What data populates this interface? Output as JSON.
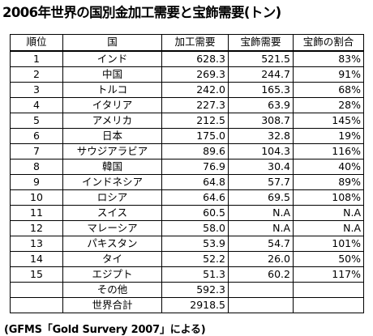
{
  "title": "2006年世界の国別金加工需要と宝飾需要(トン)",
  "columns": [
    "順位",
    "国",
    "加工需要",
    "宝飾需要",
    "宝飾の割合"
  ],
  "rows": [
    {
      "rank": "1",
      "country": "インド",
      "fab": "628.3",
      "jewelry": "521.5",
      "share": "83%"
    },
    {
      "rank": "2",
      "country": "中国",
      "fab": "269.3",
      "jewelry": "244.7",
      "share": "91%"
    },
    {
      "rank": "3",
      "country": "トルコ",
      "fab": "242.0",
      "jewelry": "165.3",
      "share": "68%"
    },
    {
      "rank": "4",
      "country": "イタリア",
      "fab": "227.3",
      "jewelry": "63.9",
      "share": "28%"
    },
    {
      "rank": "5",
      "country": "アメリカ",
      "fab": "212.5",
      "jewelry": "308.7",
      "share": "145%"
    },
    {
      "rank": "6",
      "country": "日本",
      "fab": "175.0",
      "jewelry": "32.8",
      "share": "19%"
    },
    {
      "rank": "7",
      "country": "サウジアラビア",
      "fab": "89.6",
      "jewelry": "104.3",
      "share": "116%"
    },
    {
      "rank": "8",
      "country": "韓国",
      "fab": "76.9",
      "jewelry": "30.4",
      "share": "40%"
    },
    {
      "rank": "9",
      "country": "インドネシア",
      "fab": "64.8",
      "jewelry": "57.7",
      "share": "89%"
    },
    {
      "rank": "10",
      "country": "ロシア",
      "fab": "64.6",
      "jewelry": "69.5",
      "share": "108%"
    },
    {
      "rank": "11",
      "country": "スイス",
      "fab": "60.5",
      "jewelry": "N.A",
      "share": "N.A"
    },
    {
      "rank": "12",
      "country": "マレーシア",
      "fab": "58.0",
      "jewelry": "N.A",
      "share": "N.A"
    },
    {
      "rank": "13",
      "country": "パキスタン",
      "fab": "53.9",
      "jewelry": "54.7",
      "share": "101%"
    },
    {
      "rank": "14",
      "country": "タイ",
      "fab": "52.2",
      "jewelry": "26.0",
      "share": "50%"
    },
    {
      "rank": "15",
      "country": "エジプト",
      "fab": "51.3",
      "jewelry": "60.2",
      "share": "117%"
    }
  ],
  "others": {
    "label": "その他",
    "fab": "592.3"
  },
  "total": {
    "label": "世界合計",
    "fab": "2918.5"
  },
  "source": "(GFMS「Gold Survery 2007」による)"
}
